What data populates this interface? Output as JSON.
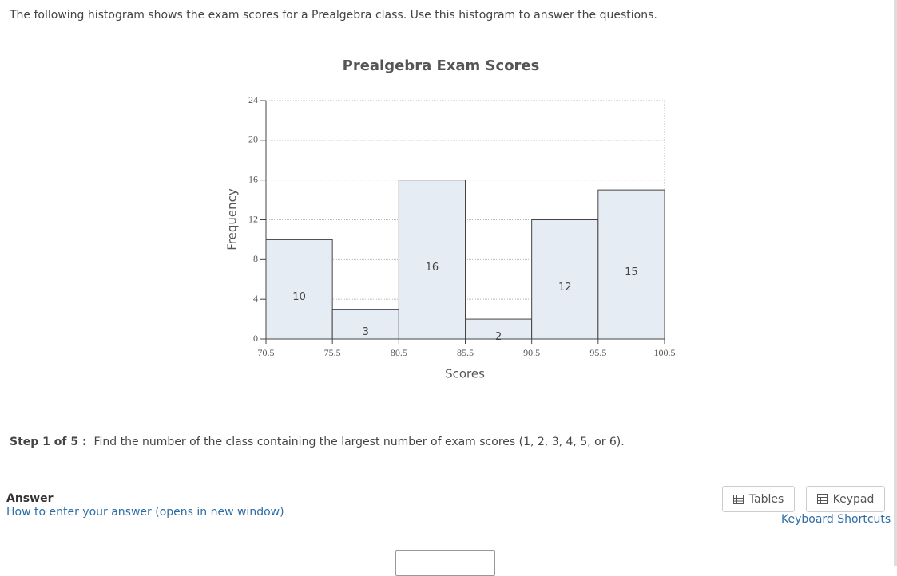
{
  "intro": "The following histogram shows the exam scores for a Prealgebra class. Use this histogram to answer the questions.",
  "chart_data": {
    "type": "histogram",
    "title": "Prealgebra Exam Scores",
    "xlabel": "Scores",
    "ylabel": "Frequency",
    "bins": [
      70.5,
      75.5,
      80.5,
      85.5,
      90.5,
      95.5,
      100.5
    ],
    "values": [
      10,
      3,
      16,
      2,
      12,
      15
    ],
    "color": "#e6ecf3",
    "edge_color": "#444444",
    "xlim": [
      70.5,
      100.5
    ],
    "ylim": [
      0,
      24
    ],
    "yticks": [
      0,
      4,
      8,
      12,
      16,
      20,
      24
    ],
    "grid": true
  },
  "step": {
    "label": "Step 1 of 5 :",
    "text": "Find the number of the class containing the largest number of exam scores (1, 2, 3, 4, 5, or 6)."
  },
  "answer": {
    "label": "Answer",
    "help_link": "How to enter your answer (opens in new window)"
  },
  "toolbar": {
    "tables": "Tables",
    "keypad": "Keypad",
    "shortcuts": "Keyboard Shortcuts"
  }
}
